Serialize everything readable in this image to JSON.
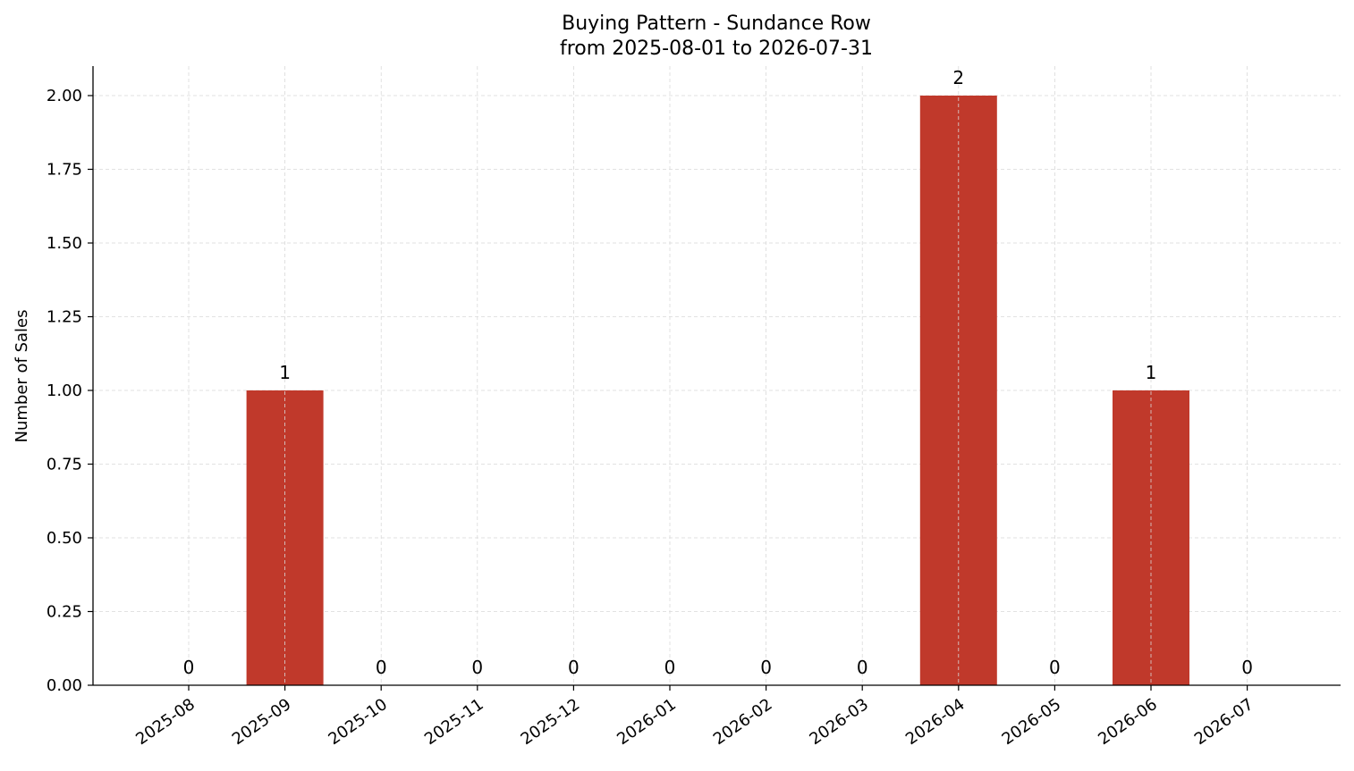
{
  "chart_data": {
    "type": "bar",
    "title": "Buying Pattern - Sundance Row",
    "subtitle": "from 2025-08-01 to 2026-07-31",
    "xlabel": "",
    "ylabel": "Number of Sales",
    "categories": [
      "2025-08",
      "2025-09",
      "2025-10",
      "2025-11",
      "2025-12",
      "2026-01",
      "2026-02",
      "2026-03",
      "2026-04",
      "2026-05",
      "2026-06",
      "2026-07"
    ],
    "values": [
      0,
      1,
      0,
      0,
      0,
      0,
      0,
      0,
      2,
      0,
      1,
      0
    ],
    "data_labels": [
      "0",
      "1",
      "0",
      "0",
      "0",
      "0",
      "0",
      "0",
      "2",
      "0",
      "1",
      "0"
    ],
    "ylim": [
      0,
      2.1
    ],
    "yticks": [
      0,
      0.25,
      0.5,
      0.75,
      1.0,
      1.25,
      1.5,
      1.75,
      2.0
    ],
    "ytick_labels": [
      "0.00",
      "0.25",
      "0.50",
      "0.75",
      "1.00",
      "1.25",
      "1.50",
      "1.75",
      "2.00"
    ],
    "grid": true,
    "bar_color": "#c0392b",
    "grid_color": "#d9d9d9"
  }
}
